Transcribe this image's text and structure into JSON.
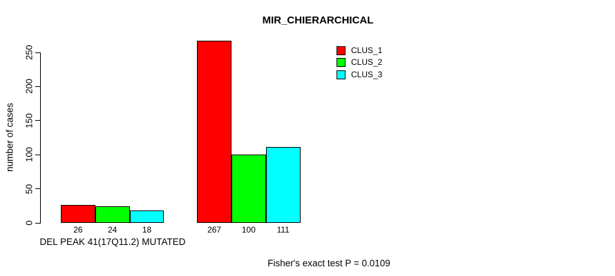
{
  "chart_data": {
    "type": "bar",
    "title": "MIR_CHIERARCHICAL",
    "ylabel": "number of cases",
    "xlabel": "",
    "categories": [
      "DEL PEAK 41(17Q11.2) MUTATED",
      ""
    ],
    "series": [
      {
        "name": "CLUS_1",
        "color": "#ff0000",
        "values": [
          26,
          267
        ]
      },
      {
        "name": "CLUS_2",
        "color": "#00ff00",
        "values": [
          24,
          100
        ]
      },
      {
        "name": "CLUS_3",
        "color": "#00ffff",
        "values": [
          18,
          111
        ]
      }
    ],
    "ylim": [
      0,
      250
    ],
    "yticks": [
      0,
      50,
      100,
      150,
      200,
      250
    ],
    "show_bar_value_labels": true,
    "grid": false,
    "legend_position": "top-right",
    "legend_entries": [
      "CLUS_1",
      "CLUS_2",
      "CLUS_3"
    ],
    "annotation": "Fisher's exact test P = 0.0109",
    "colors": {
      "clus_1": "#ff0000",
      "clus_2": "#00ff00",
      "clus_3": "#00ffff",
      "axis": "#000000",
      "background": "#ffffff"
    }
  }
}
